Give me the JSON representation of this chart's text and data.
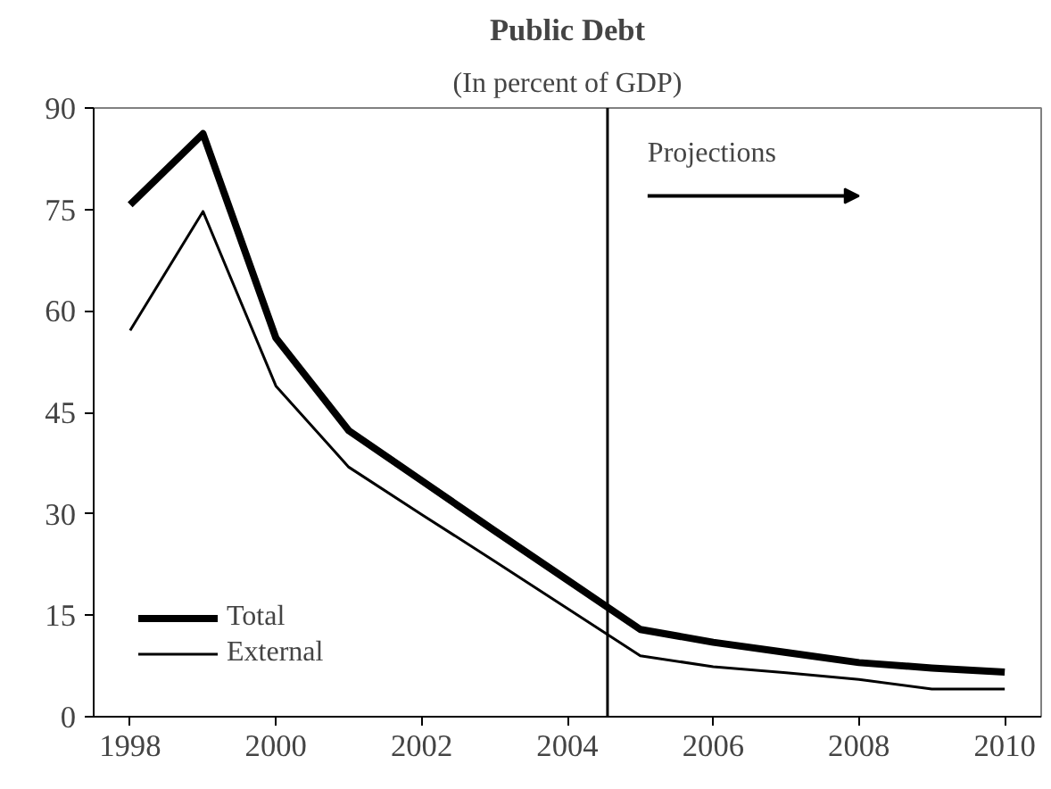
{
  "chart_data": {
    "type": "line",
    "title": "Public Debt",
    "subtitle": "(In percent of GDP)",
    "x": [
      1998,
      1999,
      2000,
      2001,
      2002,
      2003,
      2004,
      2005,
      2006,
      2007,
      2008,
      2009,
      2010
    ],
    "series": [
      {
        "name": "Total",
        "color": "#000000",
        "values": [
          75.7,
          86.2,
          56,
          42.3,
          34.9,
          27.5,
          20.2,
          12.9,
          11,
          9.5,
          8,
          7.2,
          6.6
        ]
      },
      {
        "name": "External",
        "color": "#000000",
        "values": [
          57.1,
          74.7,
          48.9,
          36.9,
          29.9,
          23,
          16,
          9,
          7.4,
          6.5,
          5.5,
          4.1,
          4.1
        ]
      }
    ],
    "xlim": [
      1997.5,
      2010.5
    ],
    "xticks": [
      1998,
      2000,
      2002,
      2004,
      2006,
      2008,
      2010
    ],
    "ylim": [
      0,
      90
    ],
    "yticks": [
      0,
      15,
      30,
      45,
      60,
      75,
      90
    ],
    "ref_lines": [
      {
        "axis": "x",
        "value": 2004.55,
        "color": "#000000"
      }
    ],
    "annotations": [
      "Projections"
    ],
    "grid": false,
    "legend": "bottom left",
    "marker": "none",
    "line_style": "solid"
  }
}
